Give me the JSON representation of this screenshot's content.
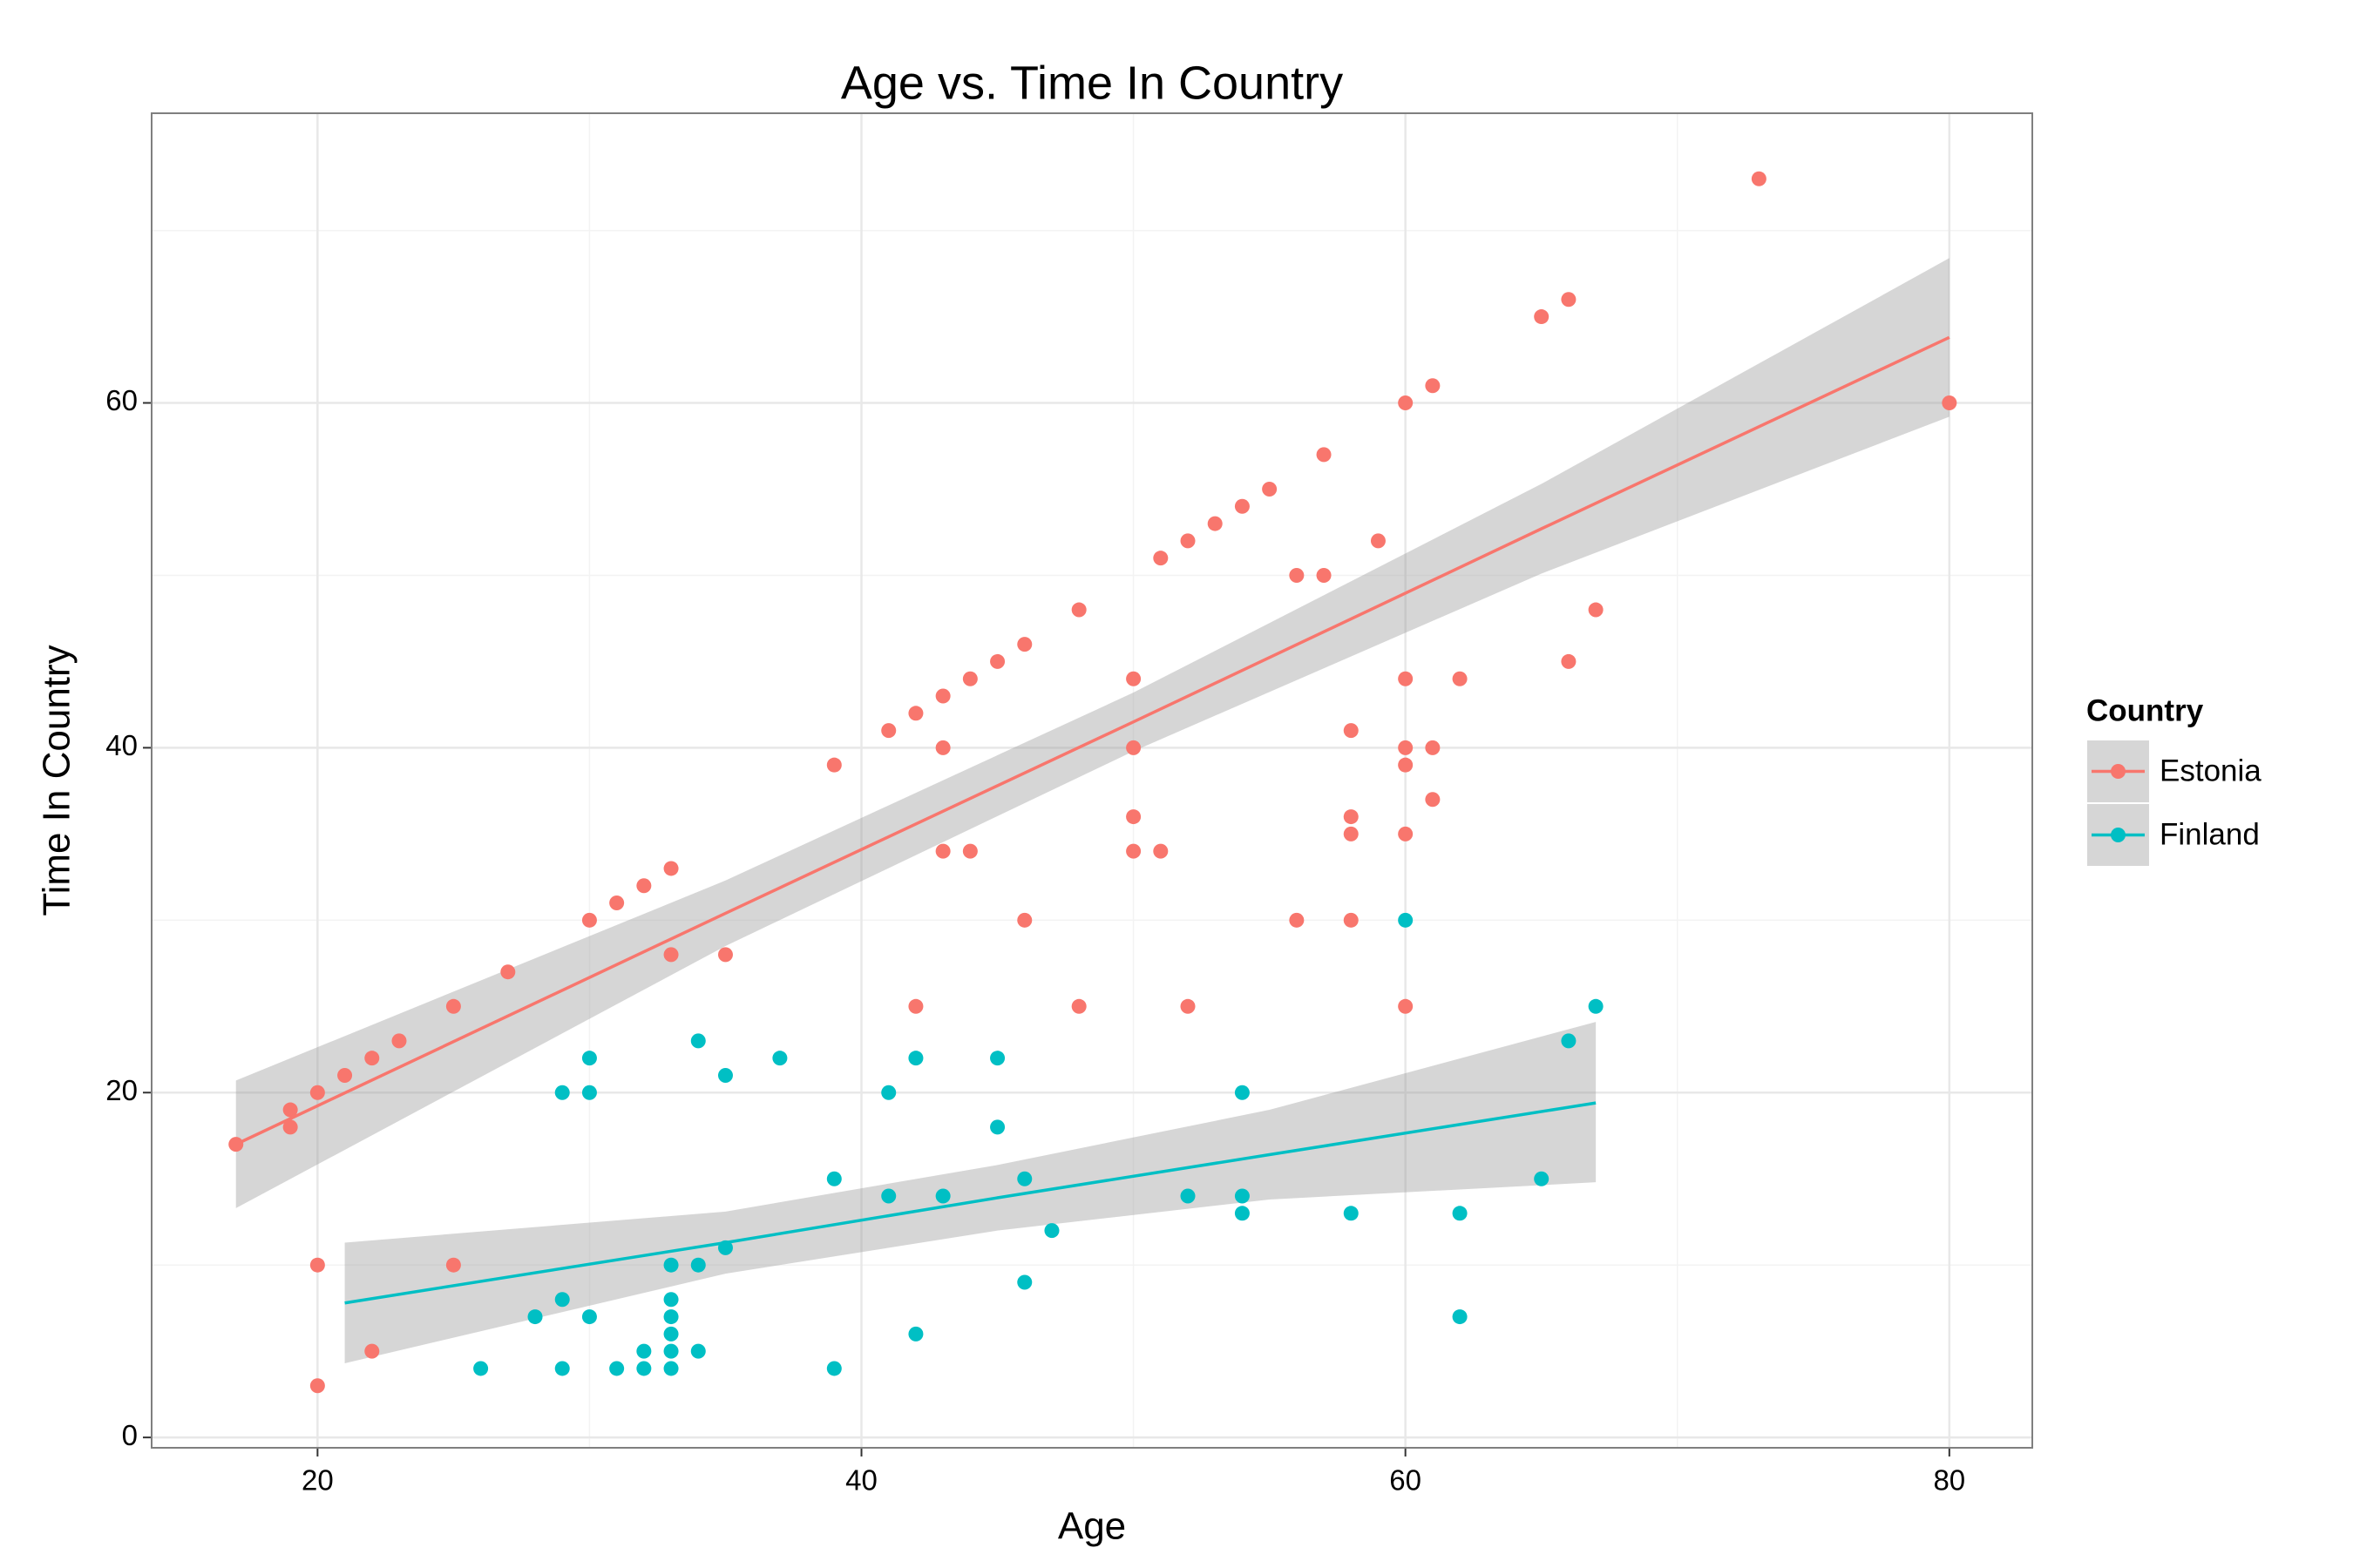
{
  "chart_data": {
    "type": "scatter",
    "title": "Age vs. Time In Country",
    "x_label": "Age",
    "y_label": "Time In Country",
    "xlim": [
      13.9,
      83.05
    ],
    "ylim": [
      -0.6,
      76.8
    ],
    "xticks": [
      20,
      40,
      60,
      80
    ],
    "yticks": [
      0,
      20,
      40,
      60
    ],
    "x_minor_grid": [
      30,
      50,
      70
    ],
    "y_minor_grid": [
      10,
      30,
      50,
      70
    ],
    "grid": true,
    "legend_title": "Country",
    "legend_position": "right",
    "band_color": "#999999",
    "series": [
      {
        "name": "Estonia",
        "color": "#F8766D",
        "x": [
          17,
          19,
          19,
          20,
          20,
          20,
          21,
          22,
          22,
          23,
          25,
          25,
          27,
          30,
          31,
          32,
          33,
          33,
          35,
          39,
          41,
          42,
          42,
          43,
          43,
          43,
          44,
          44,
          45,
          46,
          46,
          48,
          48,
          50,
          50,
          50,
          50,
          51,
          51,
          52,
          52,
          53,
          54,
          55,
          56,
          56,
          57,
          57,
          58,
          58,
          58,
          58,
          59,
          60,
          60,
          60,
          60,
          60,
          60,
          61,
          61,
          61,
          62,
          65,
          66,
          66,
          67,
          73,
          80
        ],
        "values": [
          17,
          19,
          18,
          20,
          10,
          3,
          21,
          22,
          5,
          23,
          25,
          10,
          27,
          30,
          31,
          32,
          33,
          28,
          28,
          39,
          41,
          42,
          25,
          43,
          40,
          34,
          44,
          34,
          45,
          46,
          30,
          48,
          25,
          44,
          40,
          36,
          34,
          51,
          34,
          52,
          25,
          53,
          54,
          55,
          50,
          30,
          57,
          50,
          41,
          36,
          35,
          30,
          52,
          60,
          44,
          40,
          39,
          35,
          25,
          61,
          40,
          37,
          44,
          65,
          66,
          45,
          48,
          73,
          60
        ],
        "fit": {
          "x": [
            17,
            35,
            50,
            65,
            80
          ],
          "values": [
            17.0,
            30.4,
            41.5,
            52.7,
            63.8
          ],
          "lower": [
            13.3,
            28.5,
            39.8,
            50.1,
            59.2
          ],
          "upper": [
            20.7,
            32.3,
            43.2,
            55.3,
            68.4
          ]
        }
      },
      {
        "name": "Finland",
        "color": "#00BFC4",
        "x": [
          26,
          28,
          29,
          29,
          29,
          30,
          30,
          30,
          31,
          32,
          32,
          33,
          33,
          33,
          33,
          33,
          33,
          34,
          34,
          34,
          35,
          35,
          37,
          39,
          39,
          41,
          41,
          42,
          42,
          43,
          45,
          45,
          46,
          46,
          47,
          52,
          54,
          54,
          54,
          58,
          60,
          62,
          62,
          65,
          66,
          67
        ],
        "values": [
          4,
          7,
          20,
          8,
          4,
          22,
          20,
          7,
          4,
          5,
          4,
          10,
          8,
          7,
          6,
          5,
          4,
          23,
          10,
          5,
          21,
          11,
          22,
          15,
          4,
          20,
          14,
          22,
          6,
          14,
          22,
          18,
          15,
          9,
          12,
          14,
          20,
          14,
          13,
          13,
          30,
          13,
          7,
          15,
          23,
          25
        ],
        "fit": {
          "x": [
            21,
            35,
            45,
            55,
            67
          ],
          "values": [
            7.8,
            11.3,
            13.9,
            16.4,
            19.4
          ],
          "lower": [
            4.3,
            9.5,
            12.0,
            13.8,
            14.8
          ],
          "upper": [
            11.3,
            13.1,
            15.8,
            19.0,
            24.1
          ]
        }
      }
    ]
  }
}
